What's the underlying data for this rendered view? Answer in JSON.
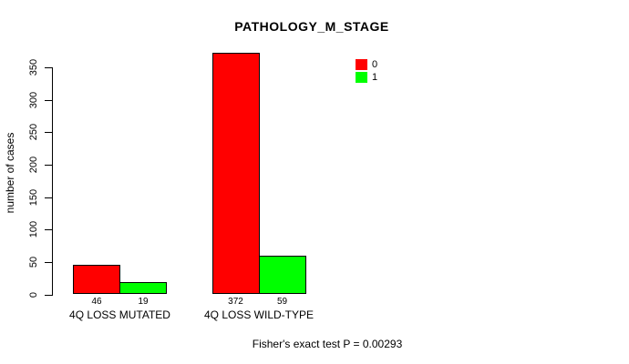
{
  "title": "PATHOLOGY_M_STAGE",
  "ylabel": "number of cases",
  "footer": "Fisher's exact test P = 0.00293",
  "colors": {
    "series_0": "#FF0000",
    "series_1": "#00FF00",
    "axis": "#000000",
    "background": "#FFFFFF"
  },
  "chart_data": {
    "type": "bar",
    "title": "PATHOLOGY_M_STAGE",
    "xlabel": "",
    "ylabel": "number of cases",
    "categories": [
      "4Q LOSS MUTATED",
      "4Q LOSS WILD-TYPE"
    ],
    "series": [
      {
        "name": "0",
        "color": "#FF0000",
        "values": [
          46,
          372
        ]
      },
      {
        "name": "1",
        "color": "#00FF00",
        "values": [
          19,
          59
        ]
      }
    ],
    "bar_value_labels": [
      [
        "46",
        "19"
      ],
      [
        "372",
        "59"
      ]
    ],
    "ylim": [
      0,
      350
    ],
    "yticks": [
      0,
      50,
      100,
      150,
      200,
      250,
      300,
      350
    ],
    "grid": false,
    "legend_position": "top-right",
    "annotation": "Fisher's exact test P = 0.00293",
    "note": "red series-0 bar in group 2 (372) exceeds the 350 axis maximum"
  }
}
